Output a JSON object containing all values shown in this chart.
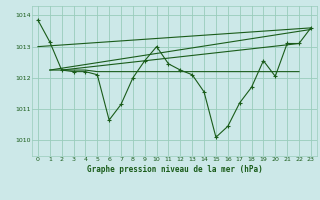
{
  "title": "Graphe pression niveau de la mer (hPa)",
  "background_color": "#cce8e8",
  "grid_color": "#99ccbb",
  "line_color": "#1a5c1a",
  "xlim": [
    -0.5,
    23.5
  ],
  "ylim": [
    1009.5,
    1014.3
  ],
  "yticks": [
    1010,
    1011,
    1012,
    1013,
    1014
  ],
  "xticks": [
    0,
    1,
    2,
    3,
    4,
    5,
    6,
    7,
    8,
    9,
    10,
    11,
    12,
    13,
    14,
    15,
    16,
    17,
    18,
    19,
    20,
    21,
    22,
    23
  ],
  "series_main": {
    "x": [
      0,
      1,
      2,
      3,
      4,
      5,
      6,
      7,
      8,
      9,
      10,
      11,
      12,
      13,
      14,
      15,
      16,
      17,
      18,
      19,
      20,
      21,
      22,
      23
    ],
    "y": [
      1013.85,
      1013.15,
      1012.25,
      1012.2,
      1012.2,
      1012.1,
      1010.65,
      1011.15,
      1012.0,
      1012.55,
      1013.0,
      1012.45,
      1012.25,
      1012.1,
      1011.55,
      1010.1,
      1010.45,
      1011.2,
      1011.7,
      1012.55,
      1012.05,
      1013.1,
      1013.1,
      1013.6
    ]
  },
  "series_flat": {
    "x": [
      1,
      2,
      3,
      4,
      5,
      6,
      7,
      8,
      9,
      10,
      11,
      12,
      13,
      14,
      15,
      16,
      17,
      18,
      19,
      20,
      21,
      22
    ],
    "y": [
      1012.25,
      1012.25,
      1012.25,
      1012.25,
      1012.2,
      1012.2,
      1012.2,
      1012.2,
      1012.2,
      1012.2,
      1012.2,
      1012.2,
      1012.2,
      1012.2,
      1012.2,
      1012.2,
      1012.2,
      1012.2,
      1012.2,
      1012.2,
      1012.2,
      1012.2
    ]
  },
  "trend_lines": [
    {
      "x": [
        0,
        23
      ],
      "y": [
        1013.0,
        1013.6
      ]
    },
    {
      "x": [
        1,
        23
      ],
      "y": [
        1012.25,
        1013.55
      ]
    },
    {
      "x": [
        2,
        22
      ],
      "y": [
        1012.25,
        1013.1
      ]
    }
  ]
}
